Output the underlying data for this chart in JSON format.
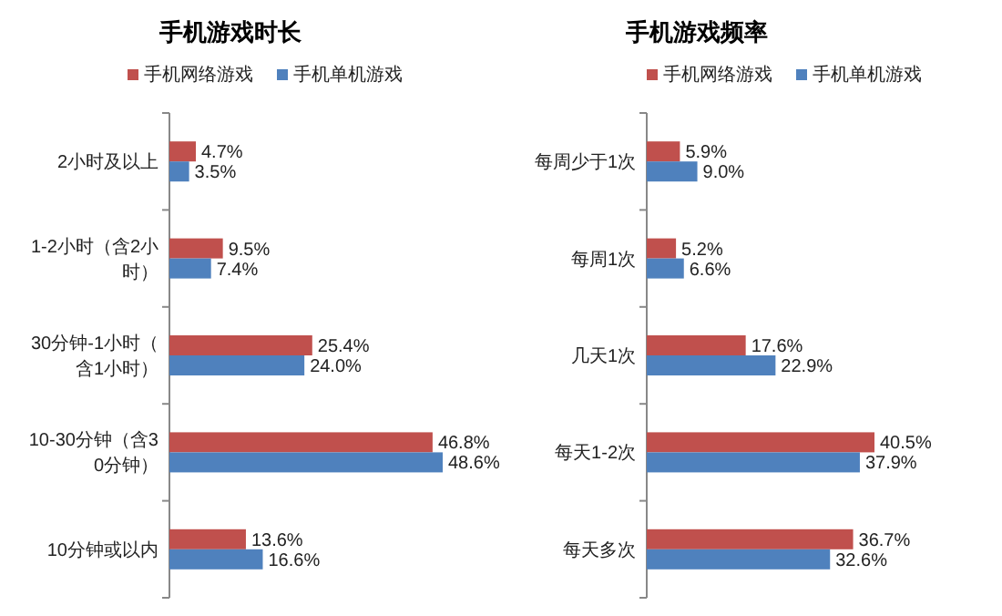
{
  "chart_data": [
    {
      "type": "bar",
      "orientation": "horizontal",
      "title": "手机游戏时长",
      "legend": "top",
      "categories": [
        "2小时及以上",
        "1-2小时（含2小时）",
        "30分钟-1小时（含1小时）",
        "10-30分钟（含30分钟）",
        "10分钟或以内"
      ],
      "series": [
        {
          "name": "手机网络游戏",
          "color": "#c0504d",
          "values": [
            4.7,
            9.5,
            25.4,
            46.8,
            13.6
          ],
          "value_labels": [
            "4.7%",
            "9.5%",
            "25.4%",
            "46.8%",
            "13.6%"
          ]
        },
        {
          "name": "手机单机游戏",
          "color": "#4f81bd",
          "values": [
            3.5,
            7.4,
            24.0,
            48.6,
            16.6
          ],
          "value_labels": [
            "3.5%",
            "7.4%",
            "24.0%",
            "48.6%",
            "16.6%"
          ]
        }
      ]
    },
    {
      "type": "bar",
      "orientation": "horizontal",
      "title": "手机游戏频率",
      "legend": "top",
      "categories": [
        "每周少于1次",
        "每周1次",
        "几天1次",
        "每天1-2次",
        "每天多次"
      ],
      "series": [
        {
          "name": "手机网络游戏",
          "color": "#c0504d",
          "values": [
            5.9,
            5.2,
            17.6,
            40.5,
            36.7
          ],
          "value_labels": [
            "5.9%",
            "5.2%",
            "17.6%",
            "40.5%",
            "36.7%"
          ]
        },
        {
          "name": "手机单机游戏",
          "color": "#4f81bd",
          "values": [
            9.0,
            6.6,
            22.9,
            37.9,
            32.6
          ],
          "value_labels": [
            "9.0%",
            "6.6%",
            "22.9%",
            "37.9%",
            "32.6%"
          ]
        }
      ]
    }
  ]
}
